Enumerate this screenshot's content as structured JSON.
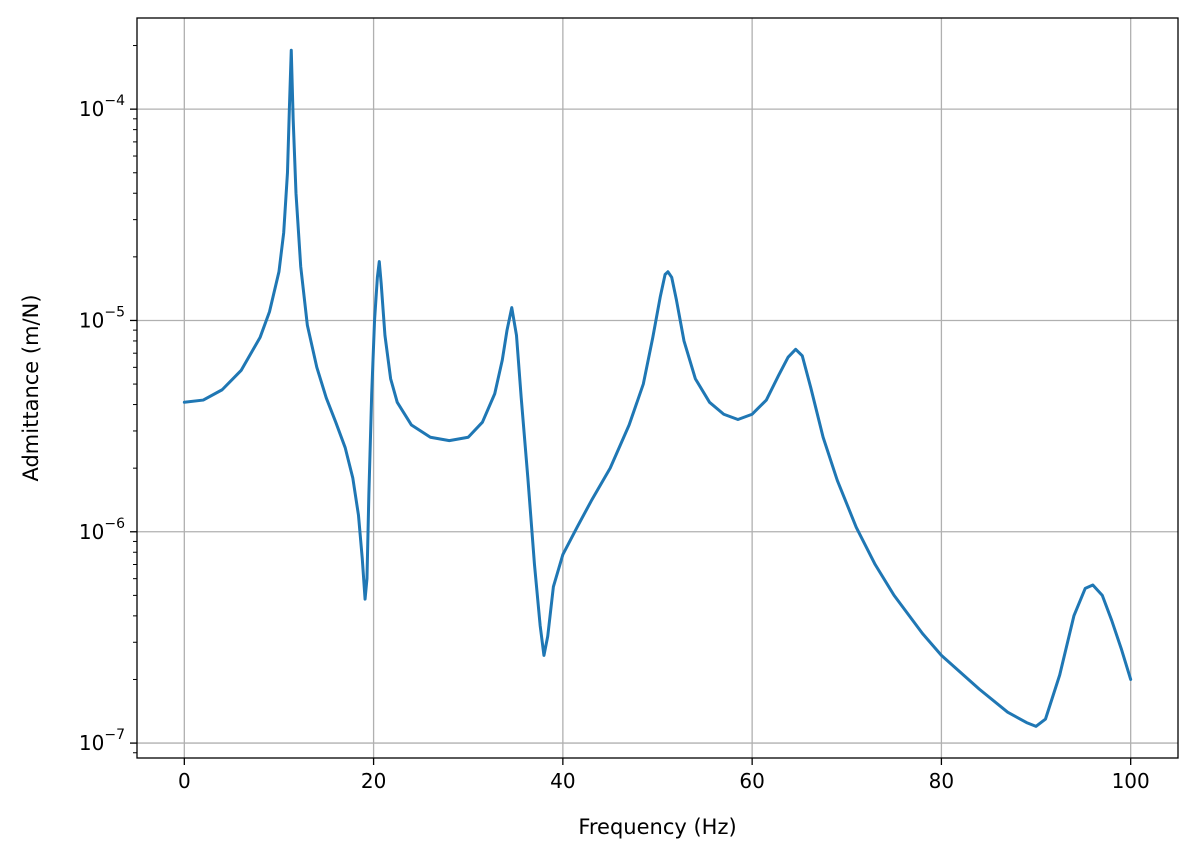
{
  "chart_data": {
    "type": "line",
    "title": "",
    "xlabel": "Frequency (Hz)",
    "ylabel": "Admittance (m/N)",
    "xlim": [
      -5,
      105
    ],
    "ylim": [
      8.5e-08,
      0.00027
    ],
    "yscale": "log",
    "grid": true,
    "x_ticks": [
      0,
      20,
      40,
      60,
      80,
      100
    ],
    "x_tick_labels": [
      "0",
      "20",
      "40",
      "60",
      "80",
      "100"
    ],
    "y_ticks": [
      1e-07,
      1e-06,
      1e-05,
      0.0001
    ],
    "y_tick_labels": [
      {
        "base": "10",
        "exp": "−7"
      },
      {
        "base": "10",
        "exp": "−6"
      },
      {
        "base": "10",
        "exp": "−5"
      },
      {
        "base": "10",
        "exp": "−4"
      }
    ],
    "colors": {
      "line": "#1f77b4",
      "grid": "#b0b0b0",
      "axes": "#000000"
    },
    "series": [
      {
        "x": [
          0,
          2,
          4,
          6,
          8,
          9,
          10,
          10.5,
          10.9,
          11.1,
          11.3,
          11.5,
          11.8,
          12.3,
          13,
          14,
          15,
          16,
          17,
          17.8,
          18.4,
          18.8,
          19.1,
          19.3,
          19.5,
          19.8,
          20.1,
          20.4,
          20.6,
          20.8,
          21.2,
          21.8,
          22.5,
          24,
          26,
          28,
          30,
          31.5,
          32.8,
          33.6,
          34.1,
          34.6,
          35.1,
          35.6,
          36.3,
          37,
          37.6,
          38,
          38.4,
          39,
          40,
          41.5,
          43,
          45,
          47,
          48.5,
          49.5,
          50.3,
          50.8,
          51.1,
          51.5,
          52,
          52.8,
          54,
          55.5,
          57,
          58.5,
          60,
          61.5,
          62.8,
          63.8,
          64.6,
          65.3,
          66.2,
          67.5,
          69,
          71,
          73,
          75,
          78,
          80,
          84,
          87,
          89,
          90,
          91,
          92.5,
          94,
          95.2,
          96,
          97,
          98,
          99,
          100
        ],
        "y": [
          4.1e-06,
          4.2e-06,
          4.7e-06,
          5.8e-06,
          8.3e-06,
          1.1e-05,
          1.7e-05,
          2.6e-05,
          5e-05,
          0.0001,
          0.00019,
          9e-05,
          4e-05,
          1.8e-05,
          9.5e-06,
          6e-06,
          4.3e-06,
          3.3e-06,
          2.5e-06,
          1.8e-06,
          1.2e-06,
          7.5e-07,
          4.8e-07,
          6e-07,
          1.5e-06,
          4.5e-06,
          1e-05,
          1.6e-05,
          1.9e-05,
          1.5e-05,
          8.5e-06,
          5.3e-06,
          4.1e-06,
          3.2e-06,
          2.8e-06,
          2.7e-06,
          2.8e-06,
          3.3e-06,
          4.5e-06,
          6.5e-06,
          9e-06,
          1.15e-05,
          8.5e-06,
          4.3e-06,
          1.8e-06,
          7e-07,
          3.6e-07,
          2.6e-07,
          3.2e-07,
          5.5e-07,
          7.8e-07,
          1.05e-06,
          1.4e-06,
          2e-06,
          3.2e-06,
          5e-06,
          8.3e-06,
          1.3e-05,
          1.65e-05,
          1.7e-05,
          1.6e-05,
          1.25e-05,
          8e-06,
          5.3e-06,
          4.1e-06,
          3.6e-06,
          3.4e-06,
          3.6e-06,
          4.2e-06,
          5.5e-06,
          6.7e-06,
          7.3e-06,
          6.8e-06,
          4.8e-06,
          2.8e-06,
          1.75e-06,
          1.05e-06,
          7e-07,
          5e-07,
          3.3e-07,
          2.6e-07,
          1.8e-07,
          1.4e-07,
          1.25e-07,
          1.2e-07,
          1.3e-07,
          2.1e-07,
          4e-07,
          5.4e-07,
          5.6e-07,
          5e-07,
          3.8e-07,
          2.8e-07,
          2e-07
        ]
      }
    ]
  }
}
